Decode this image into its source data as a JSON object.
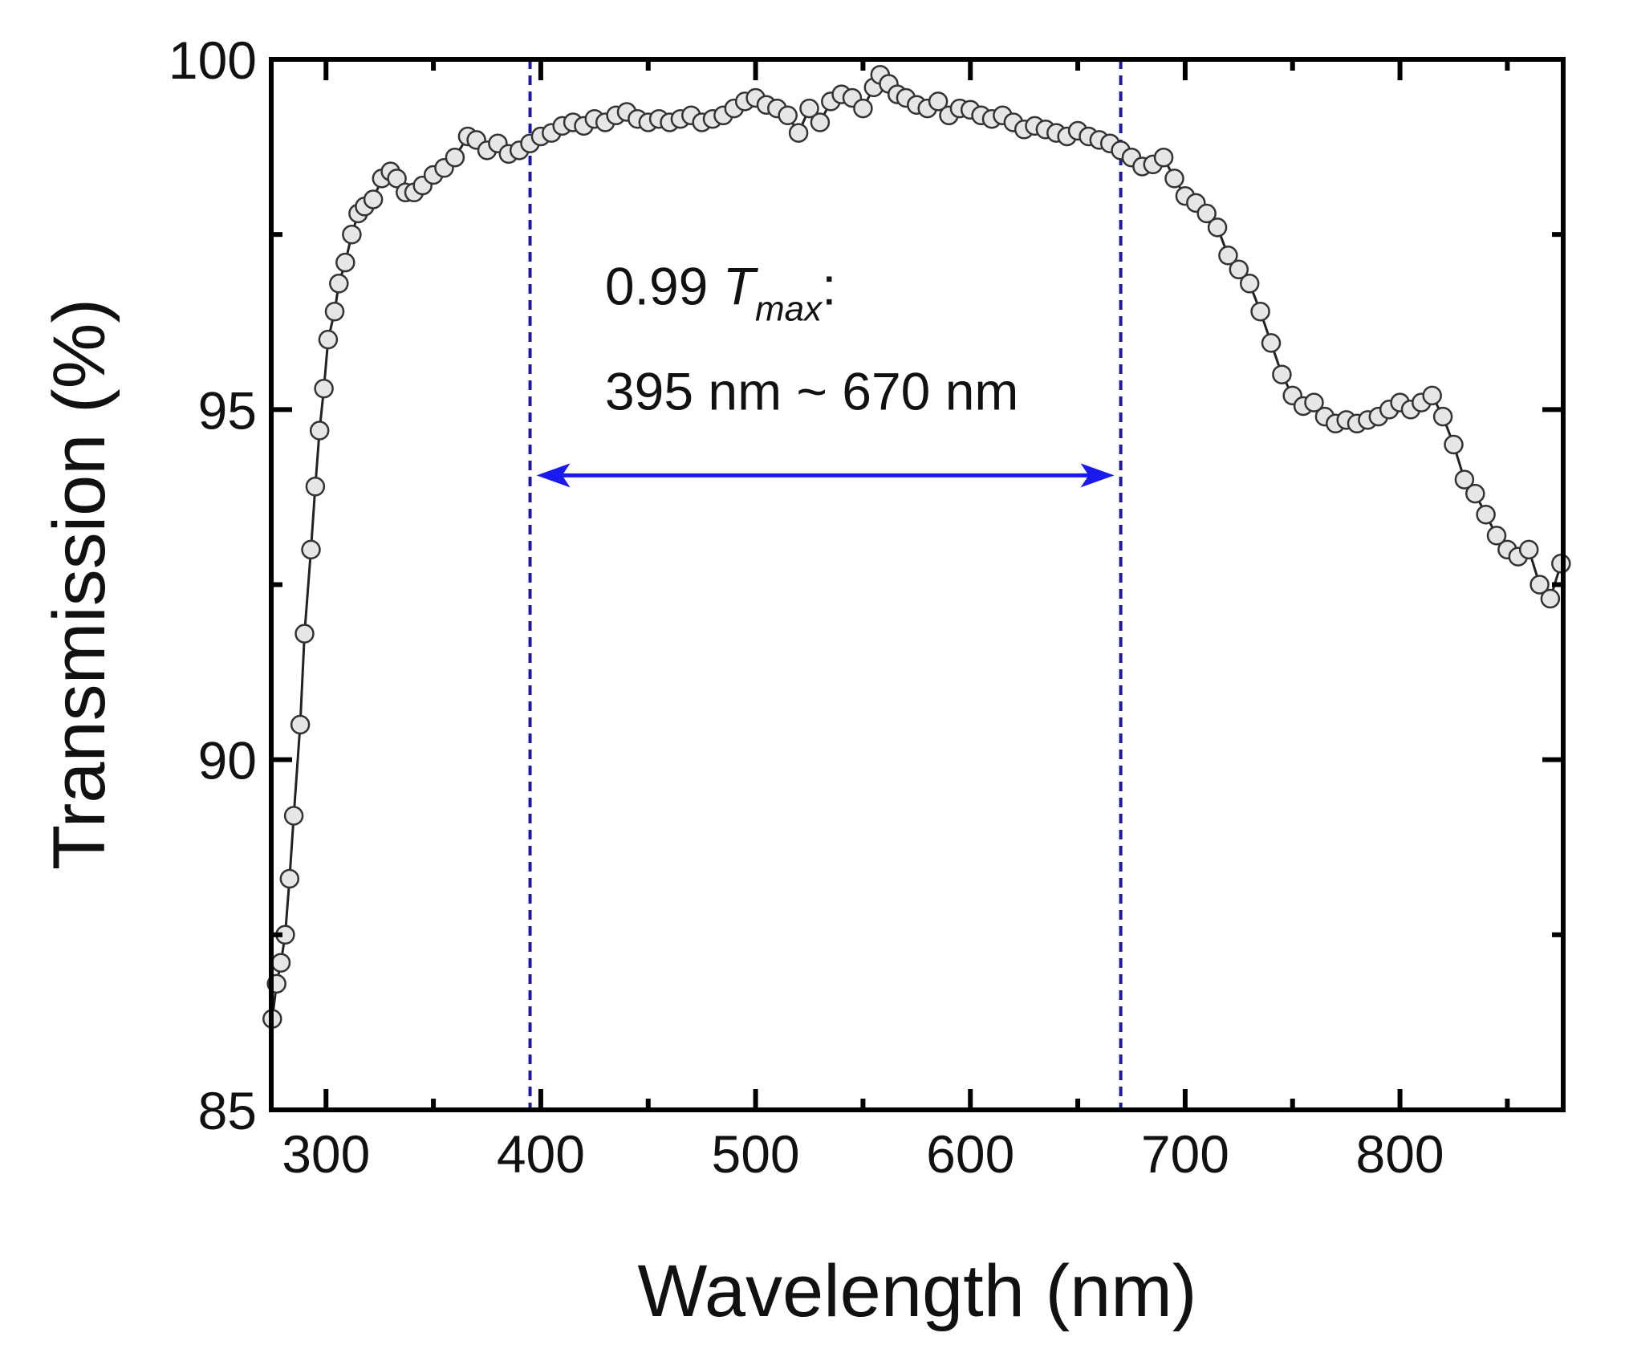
{
  "chart_data": {
    "type": "scatter",
    "title": "",
    "xlabel": "Wavelength (nm)",
    "ylabel": "Transmission (%)",
    "xlim": [
      274.5,
      876
    ],
    "ylim": [
      85,
      100
    ],
    "x_ticks": [
      300,
      400,
      500,
      600,
      700,
      800
    ],
    "x_minor_ticks": [
      350,
      450,
      550,
      650,
      750,
      850
    ],
    "y_ticks": [
      85,
      90,
      95,
      100
    ],
    "y_minor_ticks": [
      87.5,
      92.5,
      97.5
    ],
    "grid": false,
    "legend": null,
    "series": [
      {
        "name": "Transmission",
        "marker": "open-circle",
        "line": true,
        "color": "#222222",
        "x": [
          275,
          277,
          279,
          281,
          283,
          285,
          288,
          290,
          293,
          295,
          297,
          299,
          301,
          304,
          306,
          309,
          312,
          315,
          318,
          322,
          326,
          330,
          333,
          337,
          341,
          345,
          350,
          355,
          360,
          366,
          370,
          375,
          380,
          385,
          390,
          395,
          400,
          405,
          410,
          415,
          420,
          425,
          430,
          435,
          440,
          445,
          450,
          455,
          460,
          465,
          470,
          475,
          480,
          485,
          490,
          495,
          500,
          505,
          510,
          515,
          520,
          525,
          530,
          535,
          540,
          545,
          550,
          555,
          558,
          562,
          566,
          570,
          575,
          580,
          585,
          590,
          595,
          600,
          605,
          610,
          615,
          620,
          625,
          630,
          635,
          640,
          645,
          650,
          655,
          660,
          665,
          670,
          675,
          680,
          685,
          690,
          695,
          700,
          705,
          710,
          715,
          720,
          725,
          730,
          735,
          740,
          745,
          750,
          755,
          760,
          765,
          770,
          775,
          780,
          785,
          790,
          795,
          800,
          805,
          810,
          815,
          820,
          825,
          830,
          835,
          840,
          845,
          850,
          855,
          860,
          865,
          870,
          875
        ],
        "y": [
          86.3,
          86.8,
          87.1,
          87.5,
          88.3,
          89.2,
          90.5,
          91.8,
          93.0,
          93.9,
          94.7,
          95.3,
          96.0,
          96.4,
          96.8,
          97.1,
          97.5,
          97.8,
          97.9,
          98.0,
          98.3,
          98.4,
          98.3,
          98.1,
          98.1,
          98.2,
          98.35,
          98.45,
          98.6,
          98.9,
          98.85,
          98.7,
          98.8,
          98.65,
          98.7,
          98.8,
          98.9,
          98.95,
          99.05,
          99.1,
          99.05,
          99.15,
          99.1,
          99.2,
          99.25,
          99.15,
          99.1,
          99.15,
          99.1,
          99.15,
          99.2,
          99.1,
          99.15,
          99.2,
          99.3,
          99.4,
          99.45,
          99.35,
          99.3,
          99.2,
          98.95,
          99.3,
          99.1,
          99.4,
          99.5,
          99.45,
          99.3,
          99.6,
          99.78,
          99.65,
          99.5,
          99.45,
          99.35,
          99.3,
          99.4,
          99.2,
          99.3,
          99.28,
          99.2,
          99.15,
          99.2,
          99.1,
          99.0,
          99.05,
          99.0,
          98.95,
          98.9,
          98.98,
          98.9,
          98.85,
          98.8,
          98.7,
          98.6,
          98.47,
          98.5,
          98.6,
          98.3,
          98.05,
          97.95,
          97.8,
          97.6,
          97.2,
          97.0,
          96.8,
          96.4,
          95.95,
          95.5,
          95.2,
          95.05,
          95.1,
          94.9,
          94.8,
          94.85,
          94.8,
          94.85,
          94.9,
          95.0,
          95.1,
          95.0,
          95.1,
          95.2,
          94.9,
          94.5,
          94.0,
          93.8,
          93.5,
          93.2,
          93.0,
          92.9,
          93.0,
          92.5,
          92.3,
          92.8
        ]
      }
    ],
    "annotations": {
      "vlines": [
        395,
        670
      ],
      "vline_color": "#1a1aa0",
      "arrow": {
        "from": 398,
        "to": 667,
        "y": 94.06,
        "color": "#1a1aee"
      },
      "text_line1_prefix": "0.99 ",
      "text_line1_symbol": "T",
      "text_line1_sub": "max",
      "text_line1_suffix": ":",
      "text_line2": "395 nm ~ 670 nm",
      "text_anchor": {
        "x": 400,
        "y1": 96.5,
        "y2": 95.0
      }
    }
  }
}
